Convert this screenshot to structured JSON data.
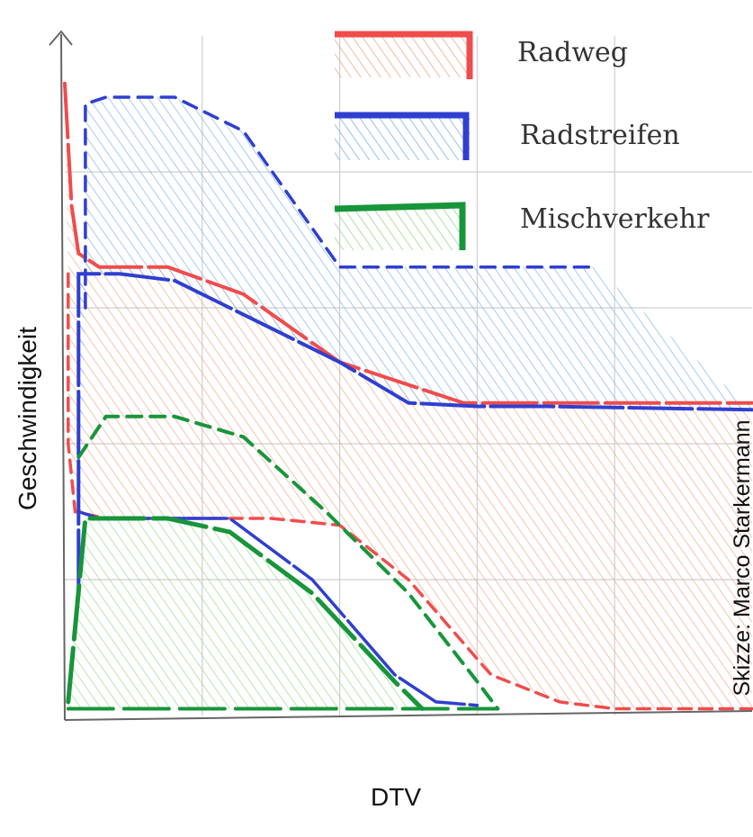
{
  "chart_data": {
    "type": "area",
    "title": "",
    "xlabel": "DTV",
    "ylabel": "Geschwindigkeit",
    "credit": "Skizze: Marco Starkermann",
    "grid": true,
    "legend_position": "top-right",
    "xlim": [
      0,
      10
    ],
    "ylim": [
      0,
      10
    ],
    "colors": {
      "Radweg": "#f04c4c",
      "Radstreifen": "#2f3fd0",
      "Mischverkehr": "#17953a"
    },
    "hatch_colors": {
      "Radweg": "#f0a98a",
      "Radstreifen": "#7fb4e6",
      "Mischverkehr": "#9bd98a"
    },
    "legend": [
      {
        "name": "Radweg",
        "color": "#f04c4c",
        "fill": "#f0a98a"
      },
      {
        "name": "Radstreifen",
        "color": "#2f3fd0",
        "fill": "#7fb4e6"
      },
      {
        "name": "Mischverkehr",
        "color": "#17953a",
        "fill": "#9bd98a"
      }
    ],
    "series": [
      {
        "name": "Radweg",
        "upper_x": [
          0,
          0.1,
          0.2,
          0.5,
          1.5,
          2.6,
          4.0,
          5.8,
          7.0,
          10.0
        ],
        "upper_y": [
          9.3,
          7.5,
          6.8,
          6.6,
          6.6,
          6.2,
          5.2,
          4.6,
          4.6,
          4.6
        ],
        "lower_x": [
          0.05,
          0.05,
          0.15,
          0.6,
          1.8,
          3.0,
          4.0,
          5.0,
          6.2,
          7.2,
          8.0,
          10.0
        ],
        "lower_y": [
          6.5,
          4.0,
          3.0,
          2.9,
          2.9,
          2.9,
          2.8,
          2.0,
          0.6,
          0.2,
          0.1,
          0.1
        ]
      },
      {
        "name": "Radstreifen",
        "upper_x": [
          0.2,
          0.2,
          0.8,
          1.6,
          2.4,
          4.0,
          5.0,
          6.0,
          7.0,
          10.0
        ],
        "upper_y": [
          1.8,
          6.5,
          6.5,
          6.4,
          6.0,
          5.2,
          4.6,
          4.55,
          4.55,
          4.5
        ],
        "lower_x": [
          0.3,
          0.3,
          0.6,
          1.6,
          2.6,
          4.0,
          5.5,
          6.8,
          7.7
        ],
        "lower_y": [
          6.0,
          9.0,
          9.1,
          9.1,
          8.6,
          6.6,
          6.6,
          6.6,
          6.6
        ],
        "upper_dashed": true,
        "lower_line_x": [
          0.2,
          0.5,
          1.5,
          2.4,
          3.6,
          4.8,
          5.4,
          6.0
        ],
        "lower_line_y": [
          3.0,
          2.9,
          2.9,
          2.9,
          2.0,
          0.6,
          0.2,
          0.15
        ]
      },
      {
        "name": "Mischverkehr",
        "upper_x": [
          0.05,
          0.3,
          1.5,
          2.4,
          3.6,
          4.8,
          5.2
        ],
        "upper_y": [
          0.2,
          2.9,
          2.9,
          2.7,
          1.8,
          0.5,
          0.1
        ],
        "lower_x": [
          0.2,
          0.6,
          1.6,
          2.6,
          3.8,
          5.0,
          6.0,
          6.3
        ],
        "lower_y": [
          3.8,
          4.4,
          4.4,
          4.1,
          3.0,
          1.8,
          0.5,
          0.1
        ],
        "base_x": [
          0.05,
          6.3
        ],
        "base_y": [
          0.1,
          0.1
        ]
      }
    ]
  }
}
